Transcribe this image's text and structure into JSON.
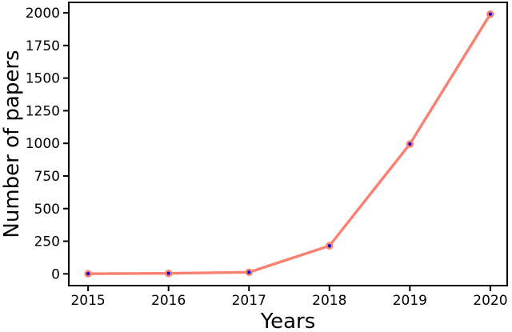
{
  "chart_data": {
    "type": "line",
    "title": "",
    "xlabel": "Years",
    "ylabel": "Number of papers",
    "x": [
      2015,
      2016,
      2017,
      2018,
      2019,
      2020
    ],
    "values": [
      1,
      4,
      12,
      215,
      995,
      1990
    ],
    "xticks": [
      "2015",
      "2016",
      "2017",
      "2018",
      "2019",
      "2020"
    ],
    "yticks": [
      "0",
      "250",
      "500",
      "750",
      "1000",
      "1250",
      "1500",
      "1750",
      "2000"
    ],
    "ytick_values": [
      0,
      250,
      500,
      750,
      1000,
      1250,
      1500,
      1750,
      2000
    ],
    "xlim": [
      2014.76,
      2020.21
    ],
    "ylim": [
      -90,
      2080
    ],
    "grid": false,
    "legend_position": "none",
    "colors": {
      "line": "#fa8072",
      "marker_fill": "#0000e0",
      "marker_edge": "#fa8072",
      "spine": "#000000",
      "tick_label": "#000000",
      "axis_label": "#000000",
      "background": "#ffffff"
    }
  }
}
